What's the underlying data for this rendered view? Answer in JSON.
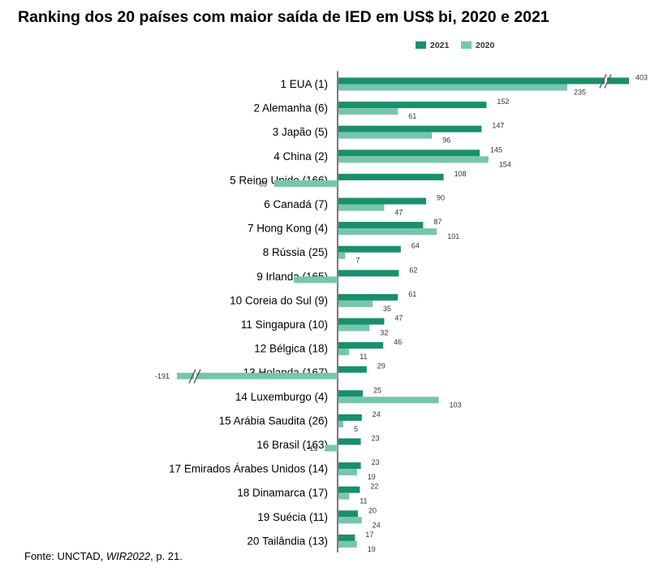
{
  "title": "Ranking dos 20 países com maior saída de IED em US$ bi, 2020 e 2021",
  "legend": [
    {
      "name": "2021",
      "color": "#1a8f6c"
    },
    {
      "name": "2020",
      "color": "#76c6ac"
    }
  ],
  "source": {
    "prefix": "Fonte: UNCTAD, ",
    "italic": "WIR2022",
    "suffix": ", p. 21."
  },
  "chart_data": {
    "type": "bar",
    "orientation": "horizontal",
    "title": "Ranking dos 20 países com maior saída de IED em US$ bi, 2020 e 2021",
    "categories": [
      "1 EUA (1)",
      "2 Alemanha (6)",
      "3 Japão (5)",
      "4 China (2)",
      "5 Reino Unido (166)",
      "6 Canadá (7)",
      "7 Hong Kong (4)",
      "8 Rússia (25)",
      "9 Irlanda (165)",
      "10 Coreia do Sul (9)",
      "11 Singapura (10)",
      "12 Bélgica (18)",
      "13 Holanda (167)",
      "14 Luxemburgo (4)",
      "15 Arábia Saudita (26)",
      "16 Brasil (163)",
      "17 Emirados Árabes Unidos (14)",
      "18 Dinamarca (17)",
      "19 Suécia (11)",
      "20 Tailândia (13)"
    ],
    "series": [
      {
        "name": "2021",
        "color": "#1a8f6c",
        "values": [
          403,
          152,
          147,
          145,
          108,
          90,
          87,
          64,
          62,
          61,
          47,
          46,
          29,
          25,
          24,
          23,
          23,
          22,
          20,
          17
        ],
        "labels": [
          "403",
          "152",
          "147",
          "145",
          "108",
          "90",
          "87",
          "64",
          "62",
          "61",
          "47",
          "46",
          "29",
          "25",
          "24",
          "23",
          "23",
          "22",
          "20",
          "17"
        ]
      },
      {
        "name": "2020",
        "color": "#76c6ac",
        "values": [
          235,
          61,
          96,
          154,
          -65,
          47,
          101,
          7,
          -45,
          35,
          32,
          11,
          -191,
          103,
          5,
          -13,
          19,
          11,
          24,
          19
        ],
        "labels": [
          "235",
          "61",
          "96",
          "154",
          "-65",
          "47",
          "101",
          "7",
          "",
          "35",
          "32",
          "11",
          "-191",
          "103",
          "5",
          "-13",
          "19",
          "11",
          "24",
          "19"
        ]
      }
    ],
    "axis_breaks": [
      "positive bar EUA 2021",
      "negative bar Holanda 2020"
    ],
    "grid": false,
    "legend_position": "top-right"
  }
}
